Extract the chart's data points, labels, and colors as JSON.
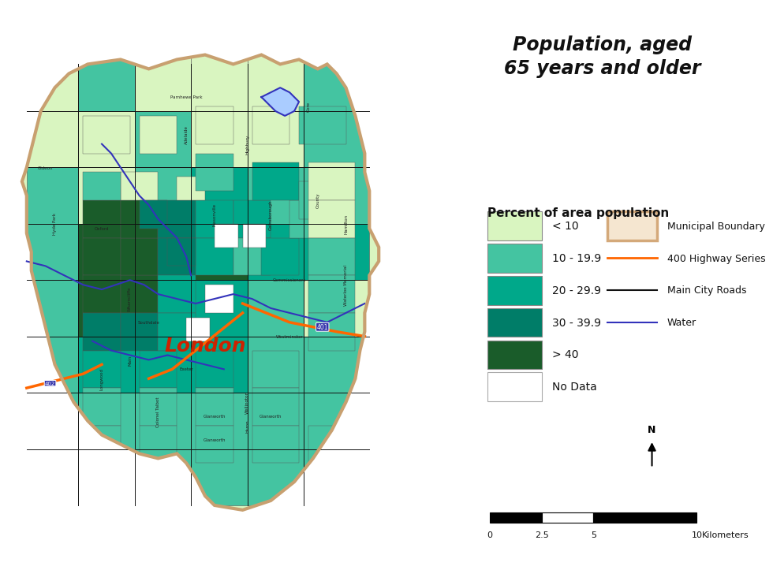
{
  "title": "Population, aged\n65 years and older",
  "title_fontsize": 17,
  "title_style": "italic",
  "title_weight": "bold",
  "legend_title": "Percent of area population",
  "legend_title_fontsize": 11,
  "legend_title_weight": "bold",
  "legend_items": [
    {
      "label": "< 10",
      "color": "#d9f5c0",
      "edgecolor": "#888888"
    },
    {
      "label": "10 - 19.9",
      "color": "#44c4a1",
      "edgecolor": "#888888"
    },
    {
      "label": "20 - 29.9",
      "color": "#00a88a",
      "edgecolor": "#888888"
    },
    {
      "label": "30 - 39.9",
      "color": "#007d68",
      "edgecolor": "#888888"
    },
    {
      "label": "> 40",
      "color": "#1a5c2a",
      "edgecolor": "#888888"
    },
    {
      "label": "No Data",
      "color": "#ffffff",
      "edgecolor": "#aaaaaa"
    }
  ],
  "line_legend_items": [
    {
      "label": "Municipal Boundary",
      "color": "#d4a97a",
      "linewidth": 3,
      "linestyle": "-",
      "fill": "#f5e6d0"
    },
    {
      "label": "400 Highway Series",
      "color": "#ff6600",
      "linewidth": 2,
      "linestyle": "-"
    },
    {
      "label": "Main City Roads",
      "color": "#111111",
      "linewidth": 1.5,
      "linestyle": "-"
    },
    {
      "label": "Water",
      "color": "#3333bb",
      "linewidth": 1.5,
      "linestyle": "-"
    }
  ],
  "scalebar_ticks": [
    0,
    2.5,
    5,
    10
  ],
  "scalebar_label": "Kilometers",
  "figure_bg": "#ffffff",
  "london_label": "London",
  "london_label_color": "#cc2200",
  "london_label_fontsize": 18,
  "london_label_style": "italic",
  "london_label_weight": "bold"
}
